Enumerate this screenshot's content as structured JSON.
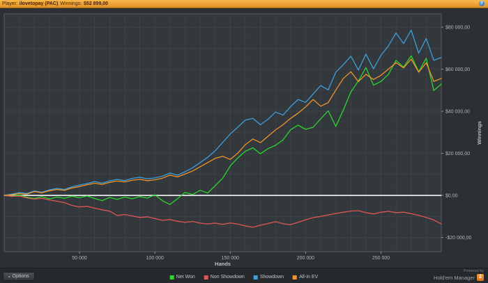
{
  "title_bar": {
    "player_label": "Player:",
    "player_name": "ilovetopay (PAC)",
    "winnings_label": "Winnings:",
    "winnings_value": "$52 899,00"
  },
  "icons": {
    "info": "?",
    "options_arrow": "▴"
  },
  "footer": {
    "options_label": "Options",
    "powered_by": "Powered by",
    "brand": "Hold'em Manager",
    "brand_badge": "2"
  },
  "chart_data": {
    "type": "line",
    "title": "",
    "xlabel": "Hands",
    "ylabel": "Winnings",
    "xlim": [
      0,
      290000
    ],
    "ylim": [
      -26800,
      86300
    ],
    "x_ticks": [
      50000,
      100000,
      150000,
      200000,
      250000
    ],
    "x_tick_labels": [
      "50 000",
      "100 000",
      "150 000",
      "200 000",
      "250 000"
    ],
    "y_ticks": [
      80000,
      60000,
      40000,
      20000,
      0,
      -20000
    ],
    "y_tick_labels": [
      "$80 000,00",
      "$60 000,00",
      "$40 000,00",
      "$20 000,00",
      "$0,00",
      "-$20 000,00"
    ],
    "grid": true,
    "grid_x_minor": 5000,
    "grid_x_major": 10000,
    "grid_y_minor": 5000,
    "grid_y_major": 10000,
    "zero_line": true,
    "legend_position": "bottom",
    "colors": {
      "plot_bg": "#33383c",
      "grid_minor": "#383d42",
      "grid_major": "#41474d",
      "border": "#565c61",
      "zero_line": "#d2d5d6",
      "tick": "#8f9396",
      "tick_label": "#b2b6b9",
      "axis_title": "#bcc0c3"
    },
    "x": [
      0,
      5000,
      10000,
      15000,
      20000,
      25000,
      30000,
      35000,
      40000,
      45000,
      50000,
      55000,
      60000,
      65000,
      70000,
      75000,
      80000,
      85000,
      90000,
      95000,
      100000,
      105000,
      110000,
      115000,
      120000,
      125000,
      130000,
      135000,
      140000,
      145000,
      150000,
      155000,
      160000,
      165000,
      170000,
      175000,
      180000,
      185000,
      190000,
      195000,
      200000,
      205000,
      210000,
      215000,
      220000,
      225000,
      230000,
      235000,
      240000,
      245000,
      250000,
      255000,
      260000,
      265000,
      270000,
      275000,
      280000,
      285000,
      290000
    ],
    "series": [
      {
        "name": "Net Won",
        "color": "#2ed52e",
        "values": [
          0,
          -400,
          300,
          -900,
          -1500,
          -600,
          -1700,
          -800,
          -1400,
          -400,
          -1100,
          -300,
          -1500,
          -2500,
          -1000,
          -1900,
          -800,
          -1600,
          -600,
          -1300,
          300,
          -2600,
          -4300,
          -1600,
          1400,
          400,
          2400,
          1100,
          4600,
          8200,
          14000,
          17800,
          21000,
          22600,
          19800,
          22200,
          23800,
          26400,
          31200,
          33400,
          31400,
          32400,
          36400,
          40200,
          32800,
          40600,
          49200,
          54400,
          60800,
          52400,
          54200,
          57600,
          64200,
          61000,
          66400,
          58800,
          65200,
          49900,
          52899
        ]
      },
      {
        "name": "Non Showdown",
        "color": "#e05656",
        "values": [
          0,
          -500,
          -300,
          -1200,
          -1800,
          -1400,
          -2200,
          -2800,
          -3500,
          -4800,
          -5500,
          -5200,
          -6100,
          -6900,
          -7500,
          -9600,
          -9100,
          -9800,
          -10500,
          -10200,
          -11000,
          -11900,
          -11500,
          -12300,
          -12800,
          -12400,
          -13200,
          -13600,
          -13200,
          -13800,
          -13100,
          -13700,
          -14500,
          -15200,
          -14200,
          -13400,
          -12500,
          -13500,
          -13900,
          -12800,
          -11600,
          -10600,
          -10000,
          -9300,
          -8600,
          -8000,
          -7500,
          -7300,
          -8200,
          -8800,
          -8000,
          -7600,
          -8200,
          -8000,
          -8700,
          -9500,
          -10500,
          -11700,
          -13600
        ]
      },
      {
        "name": "Showdown",
        "color": "#3f9fdc",
        "values": [
          0,
          600,
          1300,
          900,
          2100,
          1500,
          2600,
          3300,
          2800,
          4100,
          4900,
          5600,
          6600,
          5800,
          6900,
          7600,
          7000,
          8100,
          8600,
          7900,
          8300,
          9100,
          10600,
          9600,
          11200,
          13100,
          15600,
          18100,
          21200,
          25200,
          29200,
          32400,
          35800,
          36600,
          33600,
          36200,
          39600,
          38200,
          42200,
          45600,
          44200,
          48200,
          52200,
          50200,
          58600,
          62200,
          66200,
          59600,
          67200,
          60200,
          66600,
          71200,
          77200,
          72200,
          78600,
          67600,
          74600,
          64200,
          65600
        ]
      },
      {
        "name": "All-In EV",
        "color": "#f0932c",
        "values": [
          0,
          300,
          900,
          500,
          1800,
          1200,
          2200,
          2800,
          2400,
          3500,
          4200,
          5000,
          5800,
          5200,
          6200,
          6800,
          6400,
          7200,
          7600,
          7000,
          7400,
          8200,
          9600,
          8800,
          10100,
          11600,
          13600,
          15600,
          17600,
          18600,
          17100,
          20100,
          24100,
          26800,
          25100,
          28100,
          31100,
          33600,
          36600,
          39100,
          42100,
          45600,
          42400,
          44100,
          50100,
          55600,
          58800,
          54100,
          57600,
          55100,
          57100,
          60100,
          63100,
          60600,
          64800,
          58600,
          63100,
          54200,
          55600
        ]
      }
    ]
  }
}
